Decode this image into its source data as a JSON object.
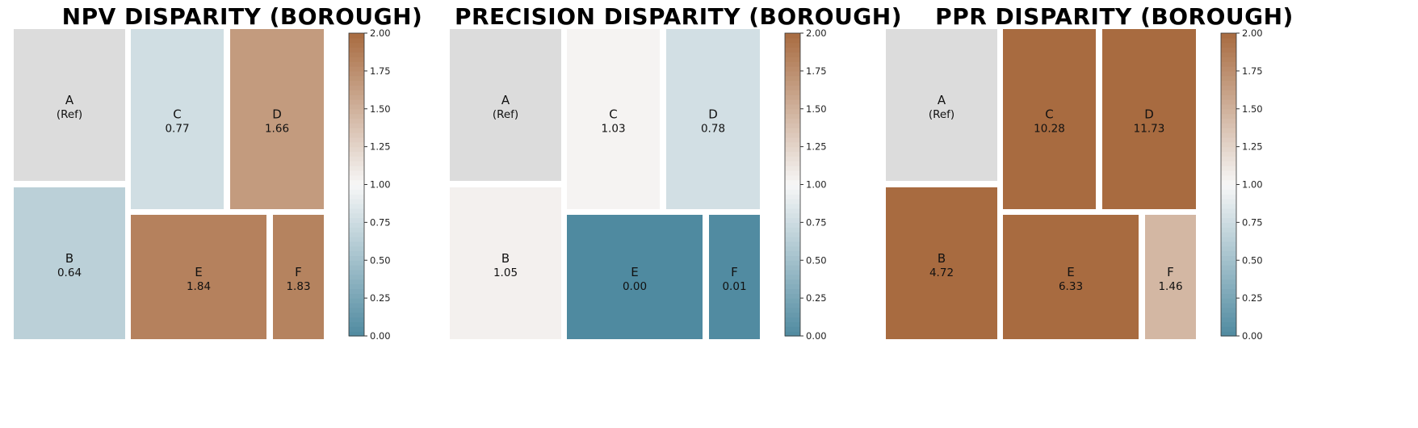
{
  "chart_data": [
    {
      "type": "treemap",
      "title": "NPV DISPARITY (BOROUGH)",
      "cells": [
        {
          "label": "A",
          "value_text": "(Ref)",
          "value": 1.0
        },
        {
          "label": "B",
          "value_text": "0.64",
          "value": 0.64
        },
        {
          "label": "C",
          "value_text": "0.77",
          "value": 0.77
        },
        {
          "label": "D",
          "value_text": "1.66",
          "value": 1.66
        },
        {
          "label": "E",
          "value_text": "1.84",
          "value": 1.84
        },
        {
          "label": "F",
          "value_text": "1.83",
          "value": 1.83
        }
      ],
      "colorbar": {
        "range": [
          0,
          2
        ],
        "ticks": [
          "0.00",
          "0.25",
          "0.50",
          "0.75",
          "1.00",
          "1.25",
          "1.50",
          "1.75",
          "2.00"
        ]
      }
    },
    {
      "type": "treemap",
      "title": "PRECISION DISPARITY (BOROUGH)",
      "cells": [
        {
          "label": "A",
          "value_text": "(Ref)",
          "value": 1.0
        },
        {
          "label": "B",
          "value_text": "1.05",
          "value": 1.05
        },
        {
          "label": "C",
          "value_text": "1.03",
          "value": 1.03
        },
        {
          "label": "D",
          "value_text": "0.78",
          "value": 0.78
        },
        {
          "label": "E",
          "value_text": "0.00",
          "value": 0.0
        },
        {
          "label": "F",
          "value_text": "0.01",
          "value": 0.01
        }
      ],
      "colorbar": {
        "range": [
          0,
          2
        ],
        "ticks": [
          "0.00",
          "0.25",
          "0.50",
          "0.75",
          "1.00",
          "1.25",
          "1.50",
          "1.75",
          "2.00"
        ]
      }
    },
    {
      "type": "treemap",
      "title": "PPR DISPARITY (BOROUGH)",
      "cells": [
        {
          "label": "A",
          "value_text": "(Ref)",
          "value": 1.0
        },
        {
          "label": "B",
          "value_text": "4.72",
          "value": 4.72
        },
        {
          "label": "C",
          "value_text": "10.28",
          "value": 10.28
        },
        {
          "label": "D",
          "value_text": "11.73",
          "value": 11.73
        },
        {
          "label": "E",
          "value_text": "6.33",
          "value": 6.33
        },
        {
          "label": "F",
          "value_text": "1.46",
          "value": 1.46
        }
      ],
      "colorbar": {
        "range": [
          0,
          2
        ],
        "ticks": [
          "0.00",
          "0.25",
          "0.50",
          "0.75",
          "1.00",
          "1.25",
          "1.50",
          "1.75",
          "2.00"
        ]
      }
    }
  ],
  "colors": {
    "low": "#4f8aa0",
    "mid": "#f7f7f7",
    "high": "#a86b40",
    "reference": "#dcdcdc"
  }
}
